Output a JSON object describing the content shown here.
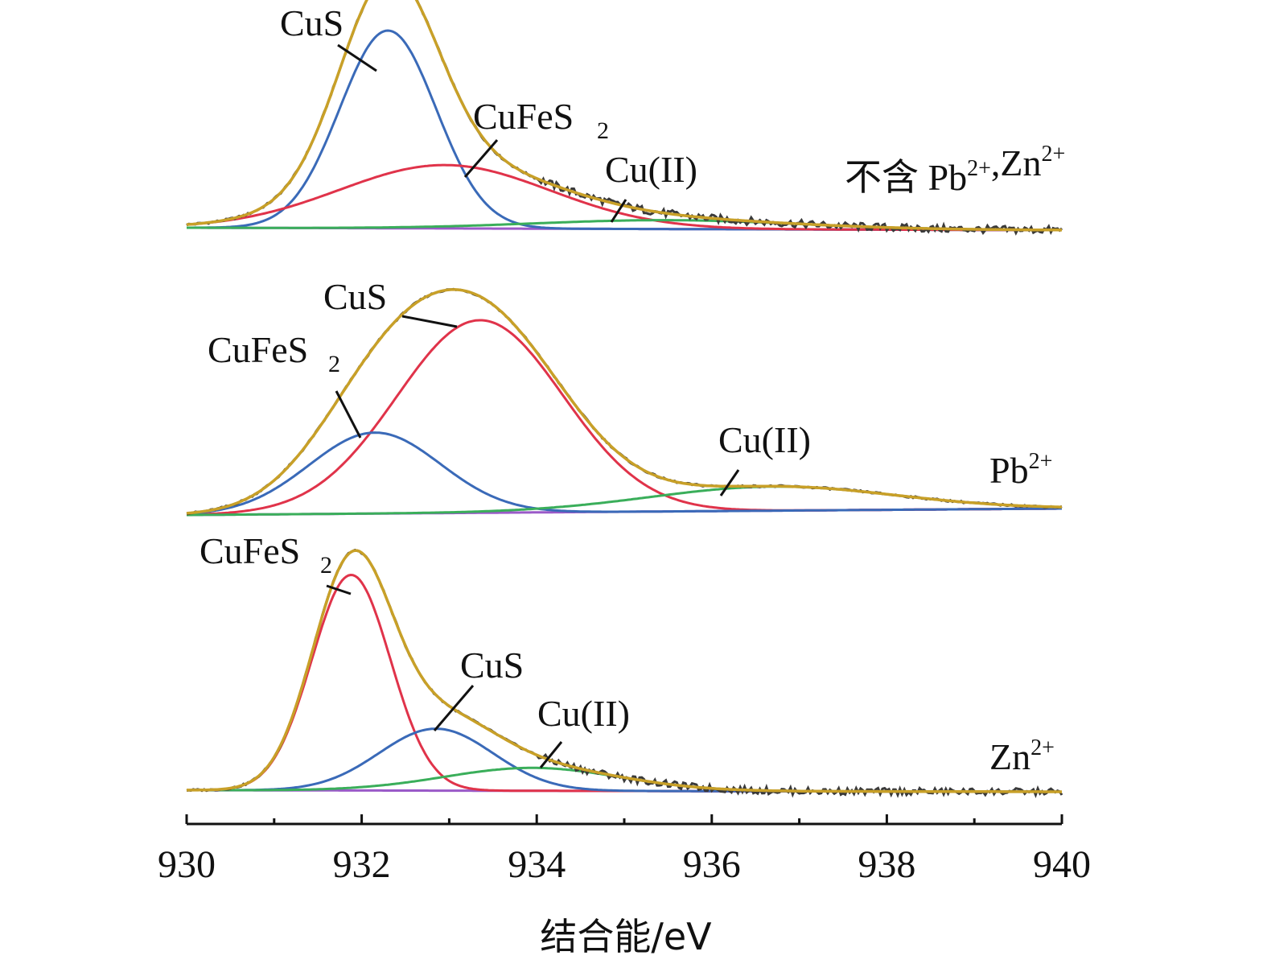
{
  "chart_data": {
    "type": "line",
    "xlabel": "结合能/eV",
    "xlim": [
      930,
      940
    ],
    "x_ticks": [
      "930",
      "932",
      "934",
      "936",
      "938",
      "940"
    ],
    "colors": {
      "measured": "#3a3a3a",
      "envelope": "#c8a028",
      "CuS_blue": "#3a6ab8",
      "CuFeS2_red": "#e0334a",
      "CuII_green": "#3aae5a",
      "baseline": "#9a5ac8"
    },
    "panels": [
      {
        "label": "不含 Pb2+,Zn2+",
        "label_parts": {
          "prefix": "不含 Pb",
          "sup1": "2+",
          "mid": ",Zn",
          "sup2": "2+"
        },
        "peaks": [
          {
            "name": "CuS",
            "label_main": "CuS",
            "label_sub": "",
            "center": 932.3,
            "height": 0.78,
            "sigma": 0.55,
            "color": "blue"
          },
          {
            "name": "CuFeS2",
            "label_main": "CuFeS",
            "label_sub": "2",
            "center": 932.95,
            "height": 0.25,
            "sigma": 1.2,
            "color": "red"
          },
          {
            "name": "Cu(II)",
            "label_main": "Cu(II)",
            "label_sub": "",
            "center": 935.5,
            "height": 0.035,
            "sigma": 1.5,
            "color": "green"
          }
        ]
      },
      {
        "label": "Pb2+",
        "label_parts": {
          "prefix": "Pb",
          "sup1": "2+",
          "mid": "",
          "sup2": ""
        },
        "peaks": [
          {
            "name": "CuS",
            "label_main": "CuS",
            "label_sub": "",
            "center": 933.35,
            "height": 0.88,
            "sigma": 0.95,
            "color": "red"
          },
          {
            "name": "CuFeS2",
            "label_main": "CuFeS",
            "label_sub": "2",
            "center": 932.15,
            "height": 0.37,
            "sigma": 0.75,
            "color": "blue"
          },
          {
            "name": "Cu(II)",
            "label_main": "Cu(II)",
            "label_sub": "",
            "center": 936.7,
            "height": 0.11,
            "sigma": 1.4,
            "color": "green"
          }
        ]
      },
      {
        "label": "Zn2+",
        "label_parts": {
          "prefix": "Zn",
          "sup1": "2+",
          "mid": "",
          "sup2": ""
        },
        "peaks": [
          {
            "name": "CuFeS2",
            "label_main": "CuFeS",
            "label_sub": "2",
            "center": 931.88,
            "height": 0.94,
            "sigma": 0.45,
            "color": "red"
          },
          {
            "name": "CuS",
            "label_main": "CuS",
            "label_sub": "",
            "center": 932.85,
            "height": 0.27,
            "sigma": 0.65,
            "color": "blue"
          },
          {
            "name": "Cu(II)",
            "label_main": "Cu(II)",
            "label_sub": "",
            "center": 933.95,
            "height": 0.1,
            "sigma": 1.0,
            "color": "green"
          }
        ]
      }
    ]
  }
}
